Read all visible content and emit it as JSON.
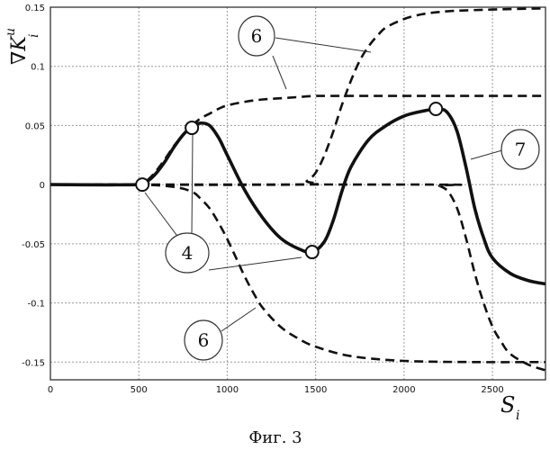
{
  "chart_data": {
    "type": "line",
    "xlabel": "S_i",
    "ylabel": "∇K_i^u",
    "xlim": [
      0,
      2800
    ],
    "ylim": [
      -0.165,
      0.15
    ],
    "x_ticks": [
      0,
      500,
      1000,
      1500,
      2000,
      2500
    ],
    "y_ticks": [
      0.15,
      0.1,
      0.05,
      0,
      -0.05,
      -0.1,
      -0.15
    ],
    "grid": true,
    "series": [
      {
        "style": "dashed",
        "x": [
          0,
          500,
          550,
          600,
          650,
          700,
          750,
          800,
          850,
          900,
          950,
          1000,
          1100,
          1200,
          1300,
          1400,
          1500,
          1600,
          1800,
          2000,
          2400,
          2800
        ],
        "y": [
          0,
          0,
          0.004,
          0.012,
          0.022,
          0.033,
          0.042,
          0.05,
          0.056,
          0.06,
          0.064,
          0.067,
          0.07,
          0.072,
          0.073,
          0.074,
          0.075,
          0.075,
          0.075,
          0.075,
          0.075,
          0.075
        ]
      },
      {
        "style": "dashed",
        "x": [
          0,
          1400,
          1450,
          1500,
          1550,
          1600,
          1650,
          1700,
          1750,
          1800,
          1850,
          1900,
          2000,
          2100,
          2200,
          2300,
          2500,
          2800
        ],
        "y": [
          0,
          0,
          0.003,
          0.01,
          0.025,
          0.045,
          0.068,
          0.088,
          0.105,
          0.117,
          0.126,
          0.133,
          0.14,
          0.144,
          0.146,
          0.147,
          0.148,
          0.149
        ]
      },
      {
        "style": "dashed",
        "x": [
          0,
          500,
          700,
          800,
          850,
          900,
          950,
          1000,
          1050,
          1100,
          1150,
          1200,
          1300,
          1400,
          1500,
          1700,
          2000,
          2400,
          2800
        ],
        "y": [
          0,
          0,
          -0.002,
          -0.006,
          -0.012,
          -0.02,
          -0.032,
          -0.046,
          -0.062,
          -0.078,
          -0.092,
          -0.104,
          -0.12,
          -0.13,
          -0.137,
          -0.145,
          -0.149,
          -0.15,
          -0.15
        ]
      },
      {
        "style": "dashed",
        "x": [
          0,
          2150,
          2200,
          2250,
          2300,
          2350,
          2400,
          2450,
          2500,
          2550,
          2600,
          2700,
          2800
        ],
        "y": [
          0,
          0,
          -0.001,
          -0.006,
          -0.02,
          -0.045,
          -0.075,
          -0.1,
          -0.12,
          -0.133,
          -0.143,
          -0.152,
          -0.157
        ]
      },
      {
        "style": "solid",
        "x": [
          0,
          500,
          550,
          600,
          650,
          700,
          750,
          800,
          850,
          900,
          950,
          1000,
          1100,
          1200,
          1300,
          1400,
          1480,
          1550,
          1600,
          1650,
          1700,
          1800,
          1900,
          2000,
          2100,
          2200,
          2250,
          2300,
          2350,
          2400,
          2450,
          2500,
          2600,
          2700,
          2800
        ],
        "y": [
          0,
          0,
          0.003,
          0.01,
          0.02,
          0.032,
          0.042,
          0.049,
          0.052,
          0.05,
          0.04,
          0.025,
          -0.005,
          -0.028,
          -0.045,
          -0.054,
          -0.057,
          -0.048,
          -0.03,
          -0.005,
          0.015,
          0.038,
          0.05,
          0.058,
          0.062,
          0.064,
          0.06,
          0.045,
          0.015,
          -0.02,
          -0.045,
          -0.062,
          -0.075,
          -0.081,
          -0.084
        ]
      }
    ],
    "markers": [
      {
        "x": 520,
        "y": 0
      },
      {
        "x": 800,
        "y": 0.048
      },
      {
        "x": 1480,
        "y": -0.057
      },
      {
        "x": 2180,
        "y": 0.064
      }
    ]
  },
  "callouts": {
    "label_6_top": "6",
    "label_6_bottom": "6",
    "label_4": "4",
    "label_7": "7"
  },
  "caption": "Фиг. 3"
}
